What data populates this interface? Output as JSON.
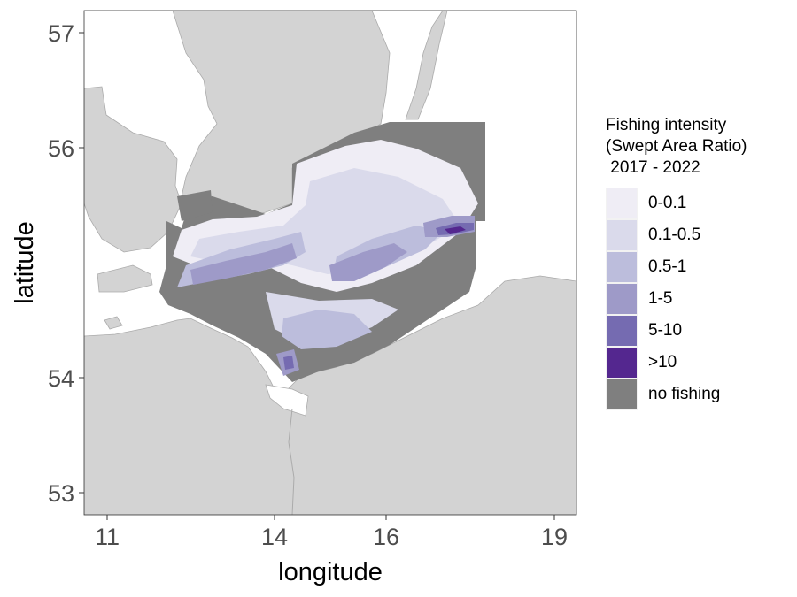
{
  "axes": {
    "xlabel": "longitude",
    "ylabel": "latitude",
    "xticks": [
      "11",
      "14",
      "16",
      "19"
    ],
    "yticks": [
      "57",
      "56",
      "54",
      "53"
    ]
  },
  "colors": {
    "land": "#d3d3d3",
    "sea": "#ffffff",
    "border": "#ababab",
    "no_fishing": "#7f7f7f"
  },
  "legend": {
    "title": "Fishing intensity\n(Swept Area Ratio)\n 2017 - 2022",
    "items": [
      {
        "label": "0-0.1",
        "color": "#efedf5"
      },
      {
        "label": "0.1-0.5",
        "color": "#dadaeb"
      },
      {
        "label": "0.5-1",
        "color": "#bcbddc"
      },
      {
        "label": "1-5",
        "color": "#9e9ac8"
      },
      {
        "label": "5-10",
        "color": "#756bb1"
      },
      {
        "label": ">10",
        "color": "#54278f"
      },
      {
        "label": "no fishing",
        "color": "#7f7f7f"
      }
    ]
  }
}
